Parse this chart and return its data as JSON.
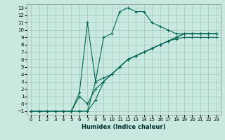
{
  "xlabel": "Humidex (Indice chaleur)",
  "bg_color": "#c8e8e0",
  "grid_color": "#9fc8c0",
  "line_color": "#006655",
  "xlim": [
    -0.5,
    23.5
  ],
  "ylim": [
    -1.5,
    13.5
  ],
  "xticks": [
    0,
    1,
    2,
    3,
    4,
    5,
    6,
    7,
    8,
    9,
    10,
    11,
    12,
    13,
    14,
    15,
    16,
    17,
    18,
    19,
    20,
    21,
    22,
    23
  ],
  "yticks": [
    -1,
    0,
    1,
    2,
    3,
    4,
    5,
    6,
    7,
    8,
    9,
    10,
    11,
    12,
    13
  ],
  "lines": [
    {
      "x": [
        0,
        1,
        2,
        3,
        4,
        5,
        6,
        7,
        8,
        9,
        10,
        11,
        12,
        13,
        14,
        15,
        16,
        17,
        18,
        19,
        20,
        21,
        22,
        23
      ],
      "y": [
        -1,
        -1,
        -1,
        -1,
        -1,
        -1,
        -1,
        -1,
        3.0,
        9.0,
        9.5,
        12.5,
        13.0,
        12.5,
        12.5,
        11.0,
        10.5,
        10.0,
        9.5,
        9.5,
        9.5,
        9.5,
        9.5,
        9.5
      ]
    },
    {
      "x": [
        0,
        1,
        2,
        3,
        4,
        5,
        6,
        7,
        8,
        9,
        10,
        11,
        12,
        13,
        14,
        15,
        16,
        17,
        18,
        19,
        20,
        21,
        22,
        23
      ],
      "y": [
        -1,
        -1,
        -1,
        -1,
        -1,
        -1,
        -1,
        -1,
        0.5,
        3.0,
        4.0,
        5.0,
        6.0,
        6.5,
        7.0,
        7.5,
        8.0,
        8.5,
        9.0,
        9.5,
        9.5,
        9.5,
        9.5,
        9.5
      ]
    },
    {
      "x": [
        0,
        1,
        2,
        3,
        4,
        5,
        6,
        7,
        8,
        9,
        10,
        11,
        12,
        13,
        14,
        15,
        16,
        17,
        18,
        19,
        20,
        21,
        22,
        23
      ],
      "y": [
        -1,
        -1,
        -1,
        -1,
        -1,
        -1,
        1.0,
        0.0,
        2.0,
        3.0,
        4.0,
        5.0,
        6.0,
        6.5,
        7.0,
        7.5,
        8.0,
        8.5,
        8.8,
        9.0,
        9.0,
        9.0,
        9.0,
        9.0
      ]
    },
    {
      "x": [
        0,
        1,
        2,
        3,
        4,
        5,
        6,
        7,
        8,
        9,
        10,
        11,
        12,
        13,
        14,
        15,
        16,
        17,
        18,
        19,
        20,
        21,
        22,
        23
      ],
      "y": [
        -1,
        -1,
        -1,
        -1,
        -1,
        -1,
        1.5,
        11.0,
        3.0,
        3.5,
        4.0,
        5.0,
        6.0,
        6.5,
        7.0,
        7.5,
        8.0,
        8.5,
        9.0,
        9.5,
        9.5,
        9.5,
        9.5,
        9.5
      ]
    }
  ]
}
